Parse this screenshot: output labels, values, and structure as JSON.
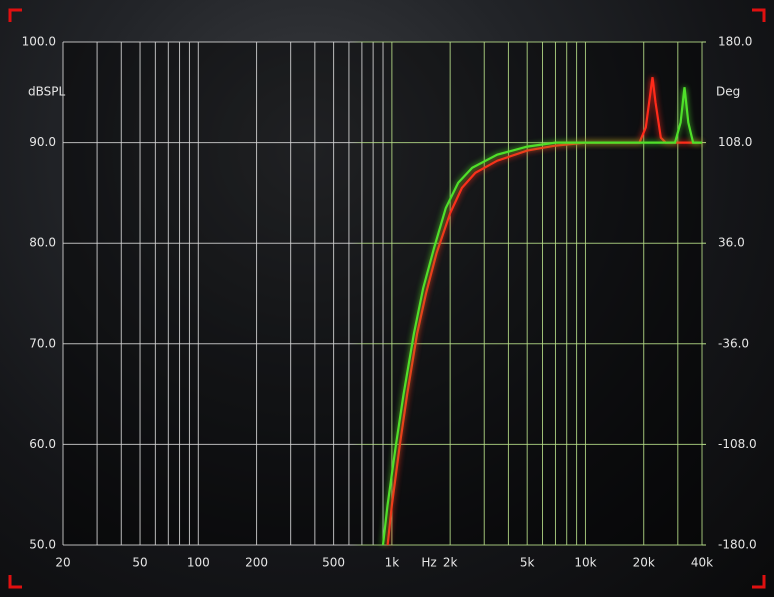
{
  "chart_data": {
    "type": "line",
    "y_label": "dBSPL",
    "y2_label": "Deg",
    "x_label": "Hz",
    "log_x": true,
    "xlim": [
      20,
      40000
    ],
    "ylim": [
      50,
      100
    ],
    "y2lim": [
      -180,
      180
    ],
    "xticks": [
      20,
      50,
      100,
      200,
      500,
      {
        "value": 1000,
        "label": "1k"
      },
      {
        "value": 2000,
        "label": "2k"
      },
      {
        "value": 5000,
        "label": "5k"
      },
      {
        "value": 10000,
        "label": "10k"
      },
      {
        "value": 20000,
        "label": "20k"
      },
      {
        "value": 40000,
        "label": "40k"
      }
    ],
    "x_grid": [
      20,
      30,
      40,
      50,
      60,
      70,
      80,
      90,
      100,
      200,
      300,
      400,
      500,
      600,
      700,
      800,
      900,
      1000,
      2000,
      3000,
      4000,
      5000,
      6000,
      7000,
      8000,
      9000,
      10000,
      20000,
      30000,
      40000
    ],
    "yticks": [
      {
        "value": 50,
        "label": "50.0"
      },
      {
        "value": 60,
        "label": "60.0"
      },
      {
        "value": 70,
        "label": "70.0"
      },
      {
        "value": 80,
        "label": "80.0"
      },
      {
        "value": 90,
        "label": "90.0"
      },
      {
        "value": 100,
        "label": "100.0"
      }
    ],
    "y2ticks": [
      {
        "value": -180,
        "label": "-180.0"
      },
      {
        "value": -108,
        "label": "-108.0"
      },
      {
        "value": -36,
        "label": "-36.0"
      },
      {
        "value": 36,
        "label": "36.0"
      },
      {
        "value": 108,
        "label": "108.0"
      },
      {
        "value": 180,
        "label": "180.0"
      }
    ],
    "series": [
      {
        "color": "#ff2a1a",
        "x": [
          950,
          1000,
          1100,
          1200,
          1350,
          1500,
          1700,
          2000,
          2300,
          2700,
          3500,
          5000,
          7000,
          10000,
          15000,
          19000,
          20500,
          21500,
          22200,
          23000,
          24500,
          26000,
          40000
        ],
        "values": [
          50,
          54,
          60,
          65,
          71,
          75,
          79,
          83,
          85.5,
          87,
          88.2,
          89.2,
          89.7,
          90,
          90,
          90,
          91.5,
          94.5,
          96.5,
          94,
          90.5,
          90,
          90
        ]
      },
      {
        "color": "#4fe02a",
        "x": [
          900,
          950,
          1050,
          1150,
          1300,
          1450,
          1650,
          1900,
          2200,
          2600,
          3500,
          5000,
          7000,
          10000,
          25000,
          29000,
          31000,
          32500,
          34000,
          36000,
          40000
        ],
        "values": [
          50,
          54,
          60,
          65,
          71,
          75.5,
          79.5,
          83.5,
          86,
          87.5,
          88.8,
          89.6,
          90,
          90,
          90,
          90,
          92,
          95.5,
          92,
          90,
          90
        ]
      }
    ]
  }
}
